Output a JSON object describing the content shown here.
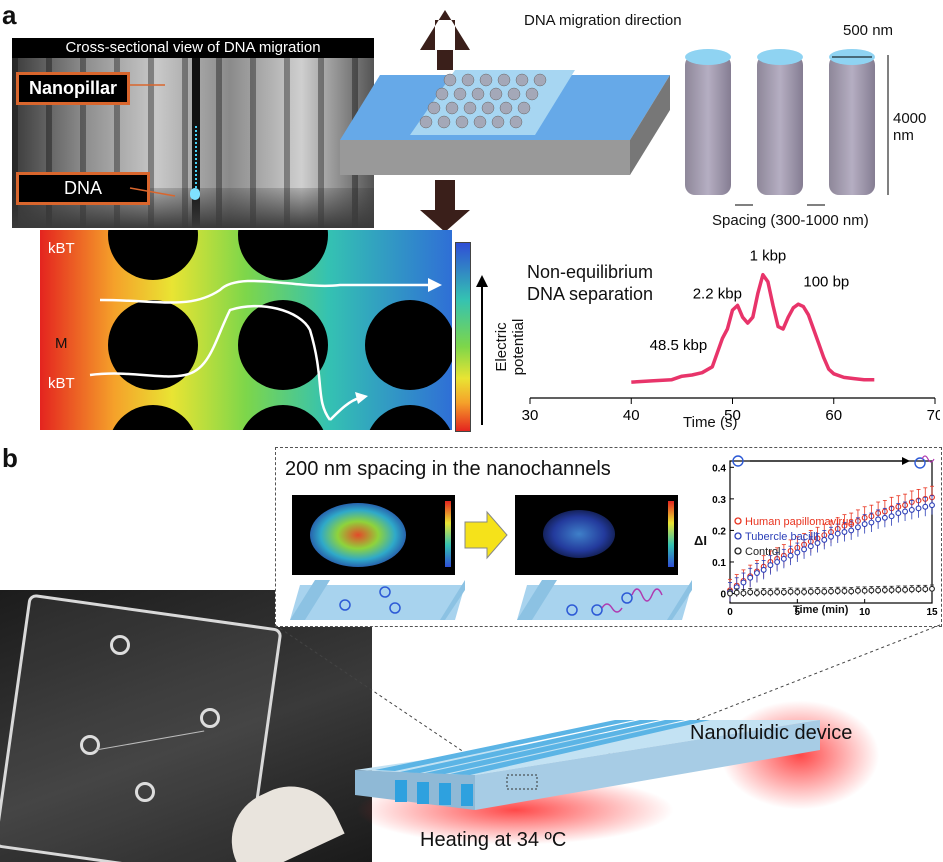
{
  "panel_a": {
    "letter": "a",
    "sem": {
      "title": "Cross-sectional view of DNA migration",
      "nanopillar_label": "Nanopillar",
      "dna_label": "DNA"
    },
    "device": {
      "direction_label": "DNA migration direction"
    },
    "pillars": {
      "diameter_label": "500 nm",
      "height_label": "4000 nm",
      "spacing_label": "Spacing (300-1000 nm)"
    },
    "sim": {
      "kbt_label": "kBT",
      "m_label": "M",
      "kbt2_label": "kBT",
      "colorbar_label": "Electric potential"
    },
    "chart": {
      "title_line1": "Non-equilibrium",
      "title_line2": "DNA separation",
      "xlabel": "Time (s)",
      "annotations": [
        "48.5 kbp",
        "2.2 kbp",
        "1 kbp",
        "100 bp"
      ]
    }
  },
  "panel_b": {
    "letter": "b",
    "inset_title": "200 nm spacing in the nanochannels",
    "device_label": "Nanofluidic device",
    "heating_label": "Heating at 34 ºC",
    "chart": {
      "xlabel": "Time (min)",
      "ylabel": "ΔI",
      "legend": [
        "Human papillomavirus",
        "Tubercle bacilli",
        "Control"
      ]
    }
  },
  "chart_data": [
    {
      "type": "line",
      "title": "Non-equilibrium DNA separation",
      "xlabel": "Time (s)",
      "ylabel": "",
      "xlim": [
        30,
        70
      ],
      "xticks": [
        30,
        40,
        50,
        60,
        70
      ],
      "series": [
        {
          "color": "#e8346a",
          "x": [
            40,
            42,
            44,
            45,
            46,
            47,
            48,
            49,
            49.5,
            50,
            50.5,
            51,
            51.5,
            52,
            52.5,
            53,
            53.5,
            54,
            54.5,
            55,
            55.5,
            56,
            56.5,
            57,
            57.5,
            58,
            58.5,
            59,
            59.5,
            60,
            61,
            62,
            63,
            64
          ],
          "y": [
            0.05,
            0.06,
            0.07,
            0.1,
            0.11,
            0.13,
            0.18,
            0.42,
            0.5,
            0.66,
            0.7,
            0.6,
            0.55,
            0.6,
            0.8,
            0.96,
            0.9,
            0.7,
            0.52,
            0.5,
            0.6,
            0.68,
            0.71,
            0.69,
            0.62,
            0.5,
            0.38,
            0.26,
            0.16,
            0.12,
            0.09,
            0.08,
            0.07,
            0.07
          ]
        }
      ],
      "annotations": [
        "48.5 kbp",
        "2.2 kbp",
        "1 kbp",
        "100 bp"
      ]
    },
    {
      "type": "scatter",
      "xlabel": "Time (min)",
      "ylabel": "ΔI",
      "xlim": [
        0,
        15
      ],
      "ylim": [
        -0.03,
        0.42
      ],
      "xticks": [
        0,
        5,
        10,
        15
      ],
      "yticks": [
        0,
        0.1,
        0.2,
        0.3,
        0.4
      ],
      "legend_position": "top-left",
      "series": [
        {
          "name": "Human papillomavirus",
          "color": "#e8321e",
          "x": [
            0,
            0.5,
            1,
            1.5,
            2,
            2.5,
            3,
            3.5,
            4,
            4.5,
            5,
            5.5,
            6,
            6.5,
            7,
            7.5,
            8,
            8.5,
            9,
            9.5,
            10,
            10.5,
            11,
            11.5,
            12,
            12.5,
            13,
            13.5,
            14,
            14.5,
            15
          ],
          "y": [
            0.01,
            0.025,
            0.04,
            0.055,
            0.07,
            0.085,
            0.1,
            0.11,
            0.12,
            0.135,
            0.145,
            0.155,
            0.165,
            0.175,
            0.185,
            0.195,
            0.205,
            0.215,
            0.22,
            0.23,
            0.24,
            0.245,
            0.255,
            0.26,
            0.27,
            0.275,
            0.28,
            0.29,
            0.295,
            0.3,
            0.305
          ],
          "error": 0.035
        },
        {
          "name": "Tubercle bacilli",
          "color": "#2c3fb8",
          "x": [
            0,
            0.5,
            1,
            1.5,
            2,
            2.5,
            3,
            3.5,
            4,
            4.5,
            5,
            5.5,
            6,
            6.5,
            7,
            7.5,
            8,
            8.5,
            9,
            9.5,
            10,
            10.5,
            11,
            11.5,
            12,
            12.5,
            13,
            13.5,
            14,
            14.5,
            15
          ],
          "y": [
            0.005,
            0.02,
            0.035,
            0.05,
            0.065,
            0.075,
            0.09,
            0.1,
            0.11,
            0.12,
            0.13,
            0.14,
            0.15,
            0.16,
            0.17,
            0.18,
            0.19,
            0.195,
            0.2,
            0.21,
            0.22,
            0.225,
            0.235,
            0.24,
            0.245,
            0.255,
            0.26,
            0.265,
            0.27,
            0.275,
            0.28
          ],
          "error": 0.03
        },
        {
          "name": "Control",
          "color": "#222222",
          "x": [
            0,
            0.5,
            1,
            1.5,
            2,
            2.5,
            3,
            3.5,
            4,
            4.5,
            5,
            5.5,
            6,
            6.5,
            7,
            7.5,
            8,
            8.5,
            9,
            9.5,
            10,
            10.5,
            11,
            11.5,
            12,
            12.5,
            13,
            13.5,
            14,
            14.5,
            15
          ],
          "y": [
            0,
            0.003,
            0.001,
            0.004,
            0.002,
            0.004,
            0.003,
            0.005,
            0.004,
            0.006,
            0.005,
            0.005,
            0.006,
            0.007,
            0.006,
            0.007,
            0.008,
            0.008,
            0.007,
            0.009,
            0.009,
            0.01,
            0.01,
            0.011,
            0.011,
            0.012,
            0.012,
            0.013,
            0.014,
            0.014,
            0.015
          ],
          "error": 0.012
        }
      ]
    }
  ]
}
